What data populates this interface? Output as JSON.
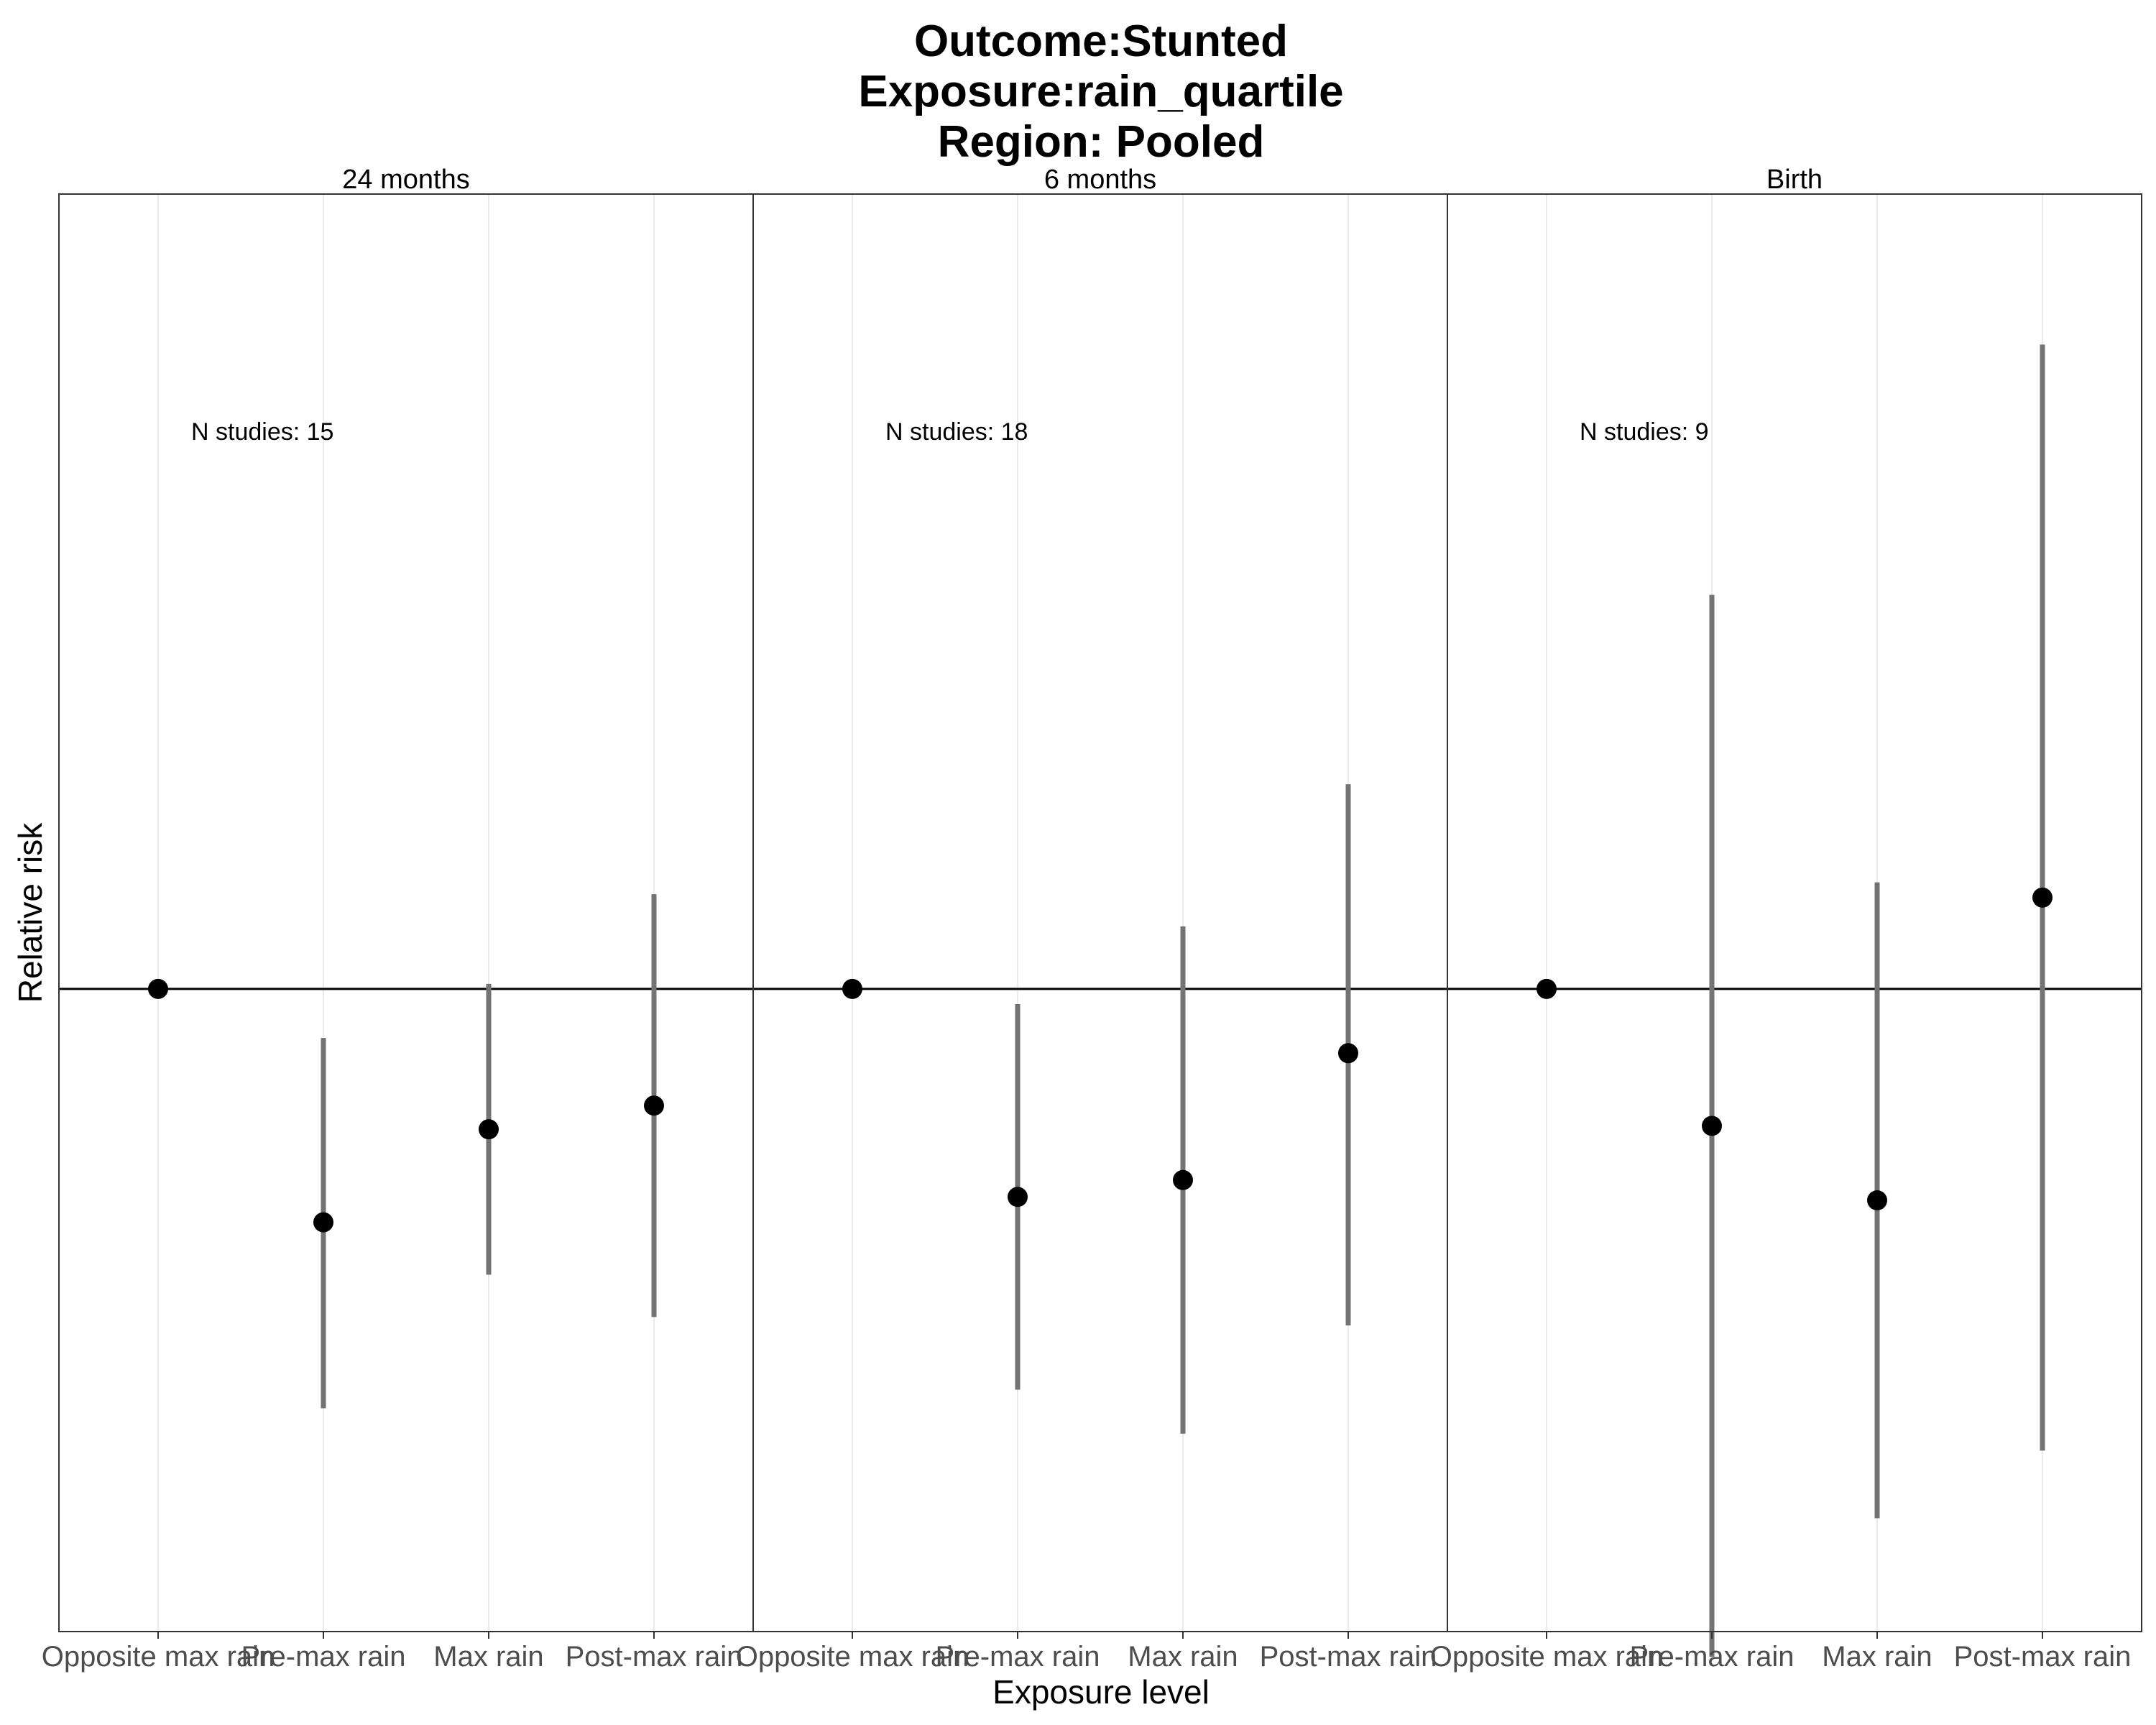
{
  "chart_data": {
    "type": "scatter",
    "title_lines": [
      "Outcome:Stunted",
      "Exposure:rain_quartile",
      "Region: Pooled"
    ],
    "xlabel": "Exposure level",
    "ylabel": "Relative risk",
    "categories": [
      "Opposite max rain",
      "Pre-max rain",
      "Max rain",
      "Post-max rain"
    ],
    "reference_line": 1.0,
    "ylim": [
      0.62,
      1.47
    ],
    "y_ticks_shown": false,
    "grid": "vertical-only",
    "panels": [
      {
        "label": "24 months",
        "annotation": "N studies: 15",
        "points": [
          {
            "category": "Opposite max rain",
            "estimate": 1.0,
            "ci_lower": null,
            "ci_upper": null
          },
          {
            "category": "Pre-max rain",
            "estimate": 0.862,
            "ci_lower": 0.752,
            "ci_upper": 0.971
          },
          {
            "category": "Max rain",
            "estimate": 0.917,
            "ci_lower": 0.831,
            "ci_upper": 1.003
          },
          {
            "category": "Post-max rain",
            "estimate": 0.931,
            "ci_lower": 0.806,
            "ci_upper": 1.056
          }
        ]
      },
      {
        "label": "6 months",
        "annotation": "N studies: 18",
        "points": [
          {
            "category": "Opposite max rain",
            "estimate": 1.0,
            "ci_lower": null,
            "ci_upper": null
          },
          {
            "category": "Pre-max rain",
            "estimate": 0.877,
            "ci_lower": 0.763,
            "ci_upper": 0.991
          },
          {
            "category": "Max rain",
            "estimate": 0.887,
            "ci_lower": 0.737,
            "ci_upper": 1.037
          },
          {
            "category": "Post-max rain",
            "estimate": 0.962,
            "ci_lower": 0.801,
            "ci_upper": 1.121
          }
        ]
      },
      {
        "label": "Birth",
        "annotation": "N studies: 9",
        "points": [
          {
            "category": "Opposite max rain",
            "estimate": 1.0,
            "ci_lower": null,
            "ci_upper": null
          },
          {
            "category": "Pre-max rain",
            "estimate": 0.919,
            "ci_lower": 0.605,
            "ci_upper": 1.233
          },
          {
            "category": "Max rain",
            "estimate": 0.875,
            "ci_lower": 0.687,
            "ci_upper": 1.063
          },
          {
            "category": "Post-max rain",
            "estimate": 1.054,
            "ci_lower": 0.727,
            "ci_upper": 1.381
          }
        ]
      }
    ],
    "colors": {
      "point": "#000000",
      "ci": "#737373",
      "reference": "#000000",
      "grid": "#ebebeb",
      "border": "#333333"
    }
  }
}
